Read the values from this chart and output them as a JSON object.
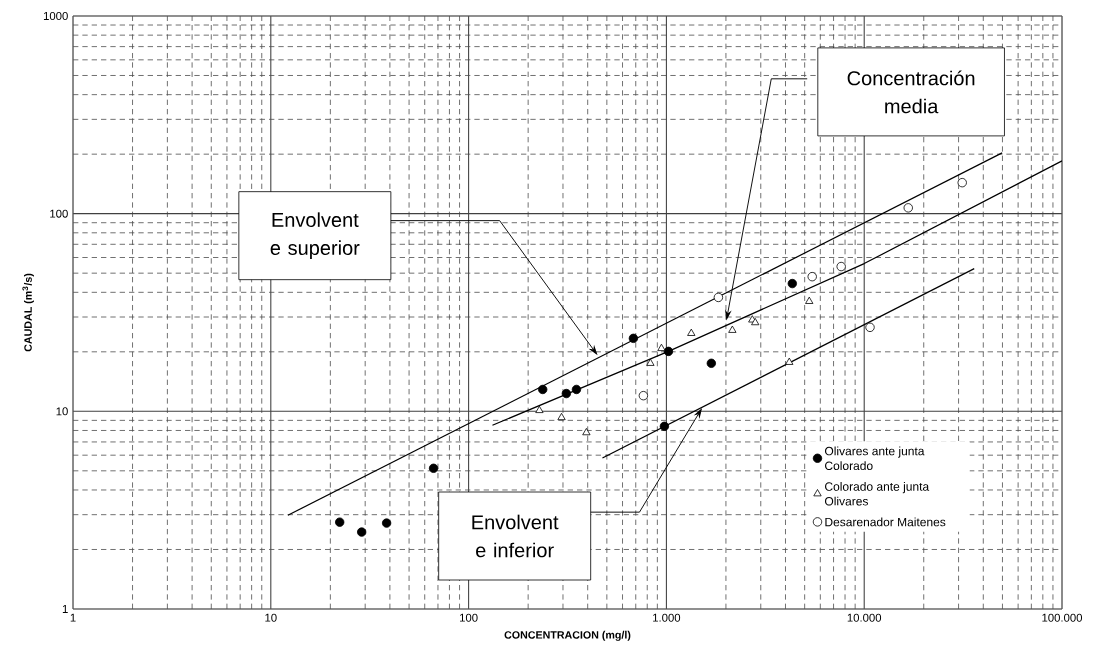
{
  "chart_data": {
    "type": "scatter",
    "xlabel": "CONCENTRACION (mg/l)",
    "ylabel": "CAUDAL (m$^{3}$/s)",
    "log": "xy",
    "grid": true,
    "legend": "bottom right",
    "xlim": [
      1,
      100000
    ],
    "ylim": [
      1,
      1000
    ],
    "xticks": [
      1,
      10,
      100,
      {
        "value": 1000,
        "label": "1.000"
      },
      {
        "value": 10000,
        "label": "10.000"
      },
      {
        "value": 100000,
        "label": "100.000"
      }
    ],
    "yticks": [
      1,
      10,
      100,
      1000
    ],
    "series": [
      {
        "name": "Olivares ante junta Colorado",
        "color": "#000000",
        "marker": "circle",
        "x": [
          22.3,
          28.8,
          38.5,
          66.5,
          237,
          312,
          351,
          681,
          1024,
          1687,
          977,
          4330
        ],
        "values": [
          2.75,
          2.45,
          2.72,
          5.15,
          12.9,
          12.3,
          12.9,
          23.4,
          20.1,
          17.5,
          8.4,
          44.3
        ]
      },
      {
        "name": "Colorado ante junta Olivares",
        "color": "#ffffff",
        "marker": "triangle",
        "x": [
          228,
          295,
          394,
          830,
          944,
          1336,
          2155,
          2718,
          2812,
          5275,
          4180
        ],
        "values": [
          10.1,
          9.3,
          7.8,
          17.5,
          20.8,
          24.8,
          25.7,
          29,
          28.1,
          36,
          17.7
        ]
      },
      {
        "name": "Desarenador Maitenes",
        "color": "#ffffff",
        "marker": "circle",
        "x": [
          765,
          1832,
          5460,
          7650,
          10700,
          16700,
          31300
        ],
        "values": [
          12.0,
          37.7,
          48,
          54,
          26.6,
          107,
          143.5
        ]
      },
      {
        "type": "line",
        "color": "#000000",
        "marker": "none",
        "x": [
          12.2,
          49800
        ],
        "values": [
          2.98,
          203
        ]
      },
      {
        "type": "line",
        "color": "#000000",
        "marker": "none",
        "x": [
          132,
          1024,
          10000,
          100000
        ],
        "values": [
          8.5,
          20.1,
          55.9,
          185
        ]
      },
      {
        "type": "line",
        "color": "#000000",
        "marker": "none",
        "x": [
          475,
          36000
        ],
        "values": [
          5.8,
          52.7
        ]
      }
    ],
    "annotations": [
      "Envolvent e superior",
      "Concentración media",
      {
        "text": "Envolvent e inferior",
        "x": 1515,
        "y": 10.4
      }
    ]
  }
}
